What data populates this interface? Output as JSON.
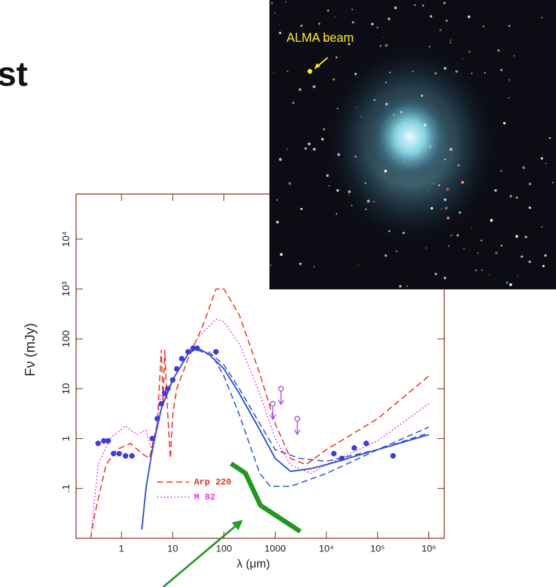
{
  "title": "st",
  "image": {
    "label": "ALMA beam"
  },
  "chart_data": {
    "type": "line",
    "x_label": "λ (μm)",
    "y_label": "Fν (mJy)",
    "log_x": true,
    "log_y": true,
    "xlim": [
      0.13,
      2000000
    ],
    "ylim": [
      0.01,
      80000
    ],
    "xticks": [
      1,
      10,
      100,
      1000,
      {
        "value": 10000,
        "label": "10⁴"
      },
      {
        "value": 100000,
        "label": "10⁵"
      },
      {
        "value": 1000000,
        "label": "10⁶"
      }
    ],
    "yticks": [
      {
        "value": 0.1,
        "label": ".1"
      },
      1,
      10,
      100,
      {
        "value": 1000,
        "label": "10³"
      },
      {
        "value": 10000,
        "label": "10⁴"
      }
    ],
    "series": [
      {
        "name": "Arp 220",
        "color": "#e8341c",
        "style": "dashed",
        "x": [
          0.25,
          0.3,
          0.5,
          0.8,
          1.5,
          2.5,
          3.5,
          5,
          6,
          6.5,
          7,
          8,
          9,
          10,
          12,
          20,
          40,
          70,
          100,
          200,
          500,
          1000,
          2000,
          4000,
          10000,
          100000,
          1000000
        ],
        "values": [
          0.01,
          0.03,
          0.3,
          0.6,
          0.8,
          0.5,
          0.4,
          2,
          60,
          5,
          60,
          3,
          0.4,
          3,
          10,
          40,
          200,
          1000,
          1000,
          300,
          20,
          2,
          0.4,
          0.3,
          0.6,
          2.5,
          18
        ]
      },
      {
        "name": "M 82",
        "color": "#e040e0",
        "style": "dotted",
        "x": [
          0.25,
          0.35,
          0.6,
          1.2,
          2,
          3,
          4,
          6,
          8,
          10,
          15,
          30,
          70,
          100,
          200,
          500,
          1000,
          2000,
          5000,
          10000,
          100000,
          1000000
        ],
        "values": [
          0.01,
          0.3,
          1,
          1.8,
          1.2,
          1.5,
          0.5,
          8,
          10,
          15,
          30,
          100,
          250,
          220,
          80,
          8,
          1,
          0.3,
          0.2,
          0.3,
          0.9,
          5
        ]
      },
      {
        "color": "#2a4fe0",
        "style": "solid",
        "x": [
          2.5,
          3,
          4,
          6,
          10,
          20,
          30,
          50,
          100,
          200,
          500,
          1000,
          2000,
          5000,
          10000,
          100000,
          1000000
        ],
        "values": [
          0.015,
          0.1,
          0.6,
          4,
          15,
          50,
          65,
          50,
          25,
          8,
          1.5,
          0.4,
          0.22,
          0.25,
          0.3,
          0.6,
          1.2
        ]
      },
      {
        "color": "#2a4fe0",
        "style": "dashed",
        "x": [
          30,
          60,
          100,
          200,
          500,
          800,
          2000,
          10000,
          100000,
          1000000
        ],
        "values": [
          60,
          45,
          18,
          3,
          0.2,
          0.11,
          0.11,
          0.2,
          0.6,
          1.7
        ]
      },
      {
        "color": "#2a4fe0",
        "style": "dashed",
        "x": [
          50,
          100,
          200,
          500,
          1000,
          3000,
          10000,
          100000,
          1000000
        ],
        "values": [
          55,
          30,
          10,
          2,
          0.6,
          0.4,
          0.35,
          0.6,
          1.3
        ]
      },
      {
        "color": "#3a3ae8",
        "style": "markers",
        "x": [
          0.35,
          0.45,
          0.55,
          0.7,
          0.9,
          1.2,
          1.6,
          4,
          5,
          6,
          7,
          8,
          10,
          12,
          15,
          20,
          25,
          30,
          70,
          14000,
          20000,
          35000,
          60000,
          200000
        ],
        "values": [
          0.8,
          0.9,
          0.9,
          0.5,
          0.5,
          0.45,
          0.45,
          1,
          2.5,
          5,
          8,
          10,
          15,
          25,
          40,
          55,
          65,
          65,
          55,
          0.5,
          0.4,
          0.65,
          0.8,
          0.45
        ]
      },
      {
        "color": "#9a40e0",
        "style": "upper-limit",
        "x": [
          900,
          1300,
          2700
        ],
        "values": [
          5,
          10,
          2.5
        ]
      }
    ]
  }
}
